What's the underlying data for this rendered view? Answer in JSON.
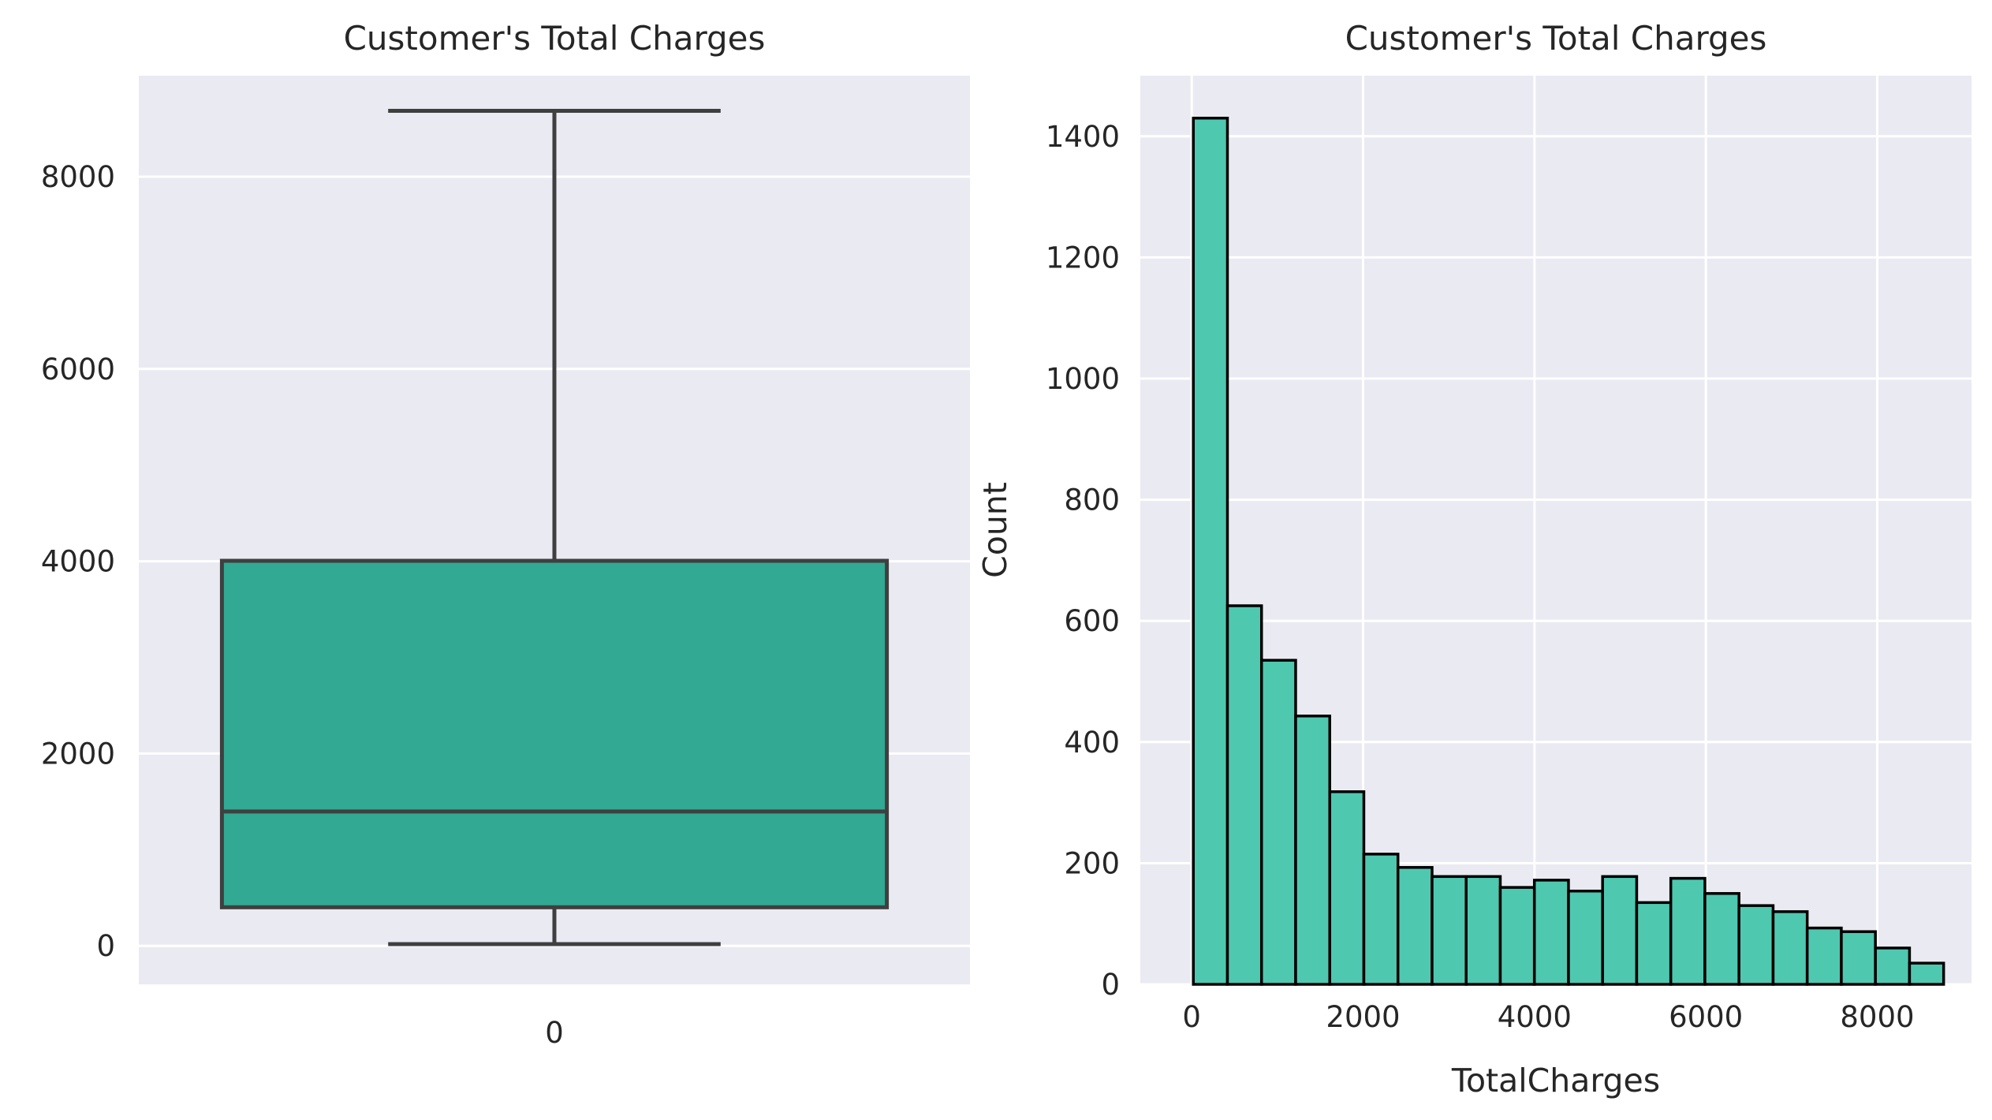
{
  "chart_data": [
    {
      "type": "box",
      "title": "Customer's Total Charges",
      "xlabel": "",
      "ylabel": "",
      "categories": [
        "0"
      ],
      "ylim": [
        -400,
        9050
      ],
      "yticks": [
        0,
        2000,
        4000,
        6000,
        8000
      ],
      "grid": true,
      "color": "#31a993",
      "line_color": "#3f3f3f",
      "box": {
        "whisker_low": 18.8,
        "q1": 401.4,
        "median": 1397.5,
        "q3": 4005,
        "whisker_high": 8684.8
      }
    },
    {
      "type": "histogram",
      "title": "Customer's Total Charges",
      "xlabel": "TotalCharges",
      "ylabel": "Count",
      "xlim": [
        -600,
        9100
      ],
      "ylim": [
        0,
        1500
      ],
      "xticks": [
        0,
        2000,
        4000,
        6000,
        8000
      ],
      "yticks": [
        0,
        200,
        400,
        600,
        800,
        1000,
        1200,
        1400
      ],
      "grid": true,
      "color": "#4fc8b0",
      "edge_color": "#000000",
      "bin_start": 18.8,
      "bin_width": 398,
      "counts": [
        1430,
        625,
        535,
        443,
        318,
        215,
        193,
        178,
        178,
        160,
        172,
        154,
        178,
        135,
        175,
        150,
        130,
        120,
        93,
        87,
        60,
        35
      ]
    }
  ]
}
